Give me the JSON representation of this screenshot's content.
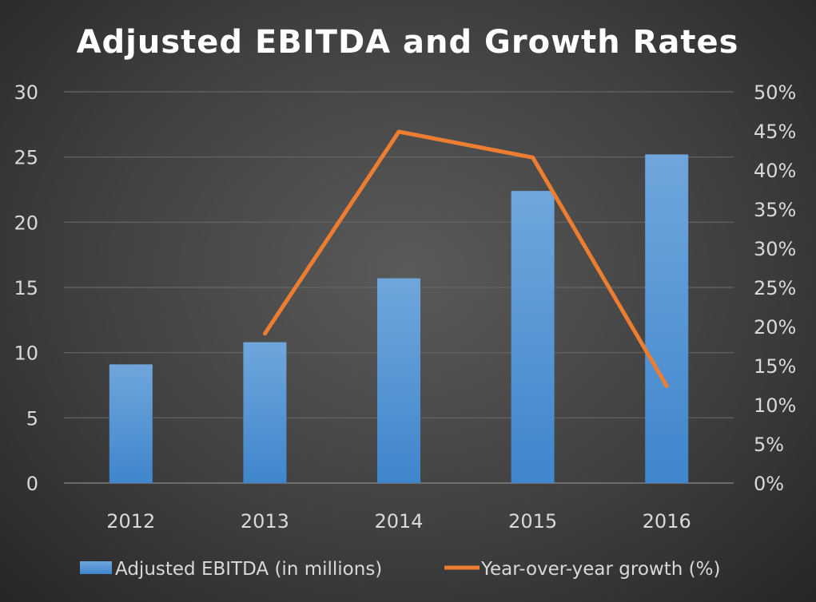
{
  "chart_data": {
    "type": "bar+line",
    "title": "Adjusted EBITDA and Growth Rates",
    "categories": [
      "2012",
      "2013",
      "2014",
      "2015",
      "2016"
    ],
    "series": [
      {
        "name": "Adjusted EBITDA (in millions)",
        "type": "bar",
        "axis": "left",
        "values": [
          9.1,
          10.8,
          15.7,
          22.4,
          25.2
        ],
        "color": "#5b9bd5"
      },
      {
        "name": "Year-over-year growth (%)",
        "type": "line",
        "axis": "right",
        "values": [
          null,
          19.1,
          44.9,
          41.6,
          12.4
        ],
        "color": "#ed7d31"
      }
    ],
    "left_axis": {
      "ylim": [
        0,
        30
      ],
      "ticks": [
        "0",
        "5",
        "10",
        "15",
        "20",
        "25",
        "30"
      ]
    },
    "right_axis": {
      "ylim": [
        0,
        50
      ],
      "ticks": [
        "0%",
        "5%",
        "10%",
        "15%",
        "20%",
        "25%",
        "30%",
        "35%",
        "40%",
        "45%",
        "50%"
      ]
    },
    "grid": true,
    "legend_placement": "bottom"
  }
}
